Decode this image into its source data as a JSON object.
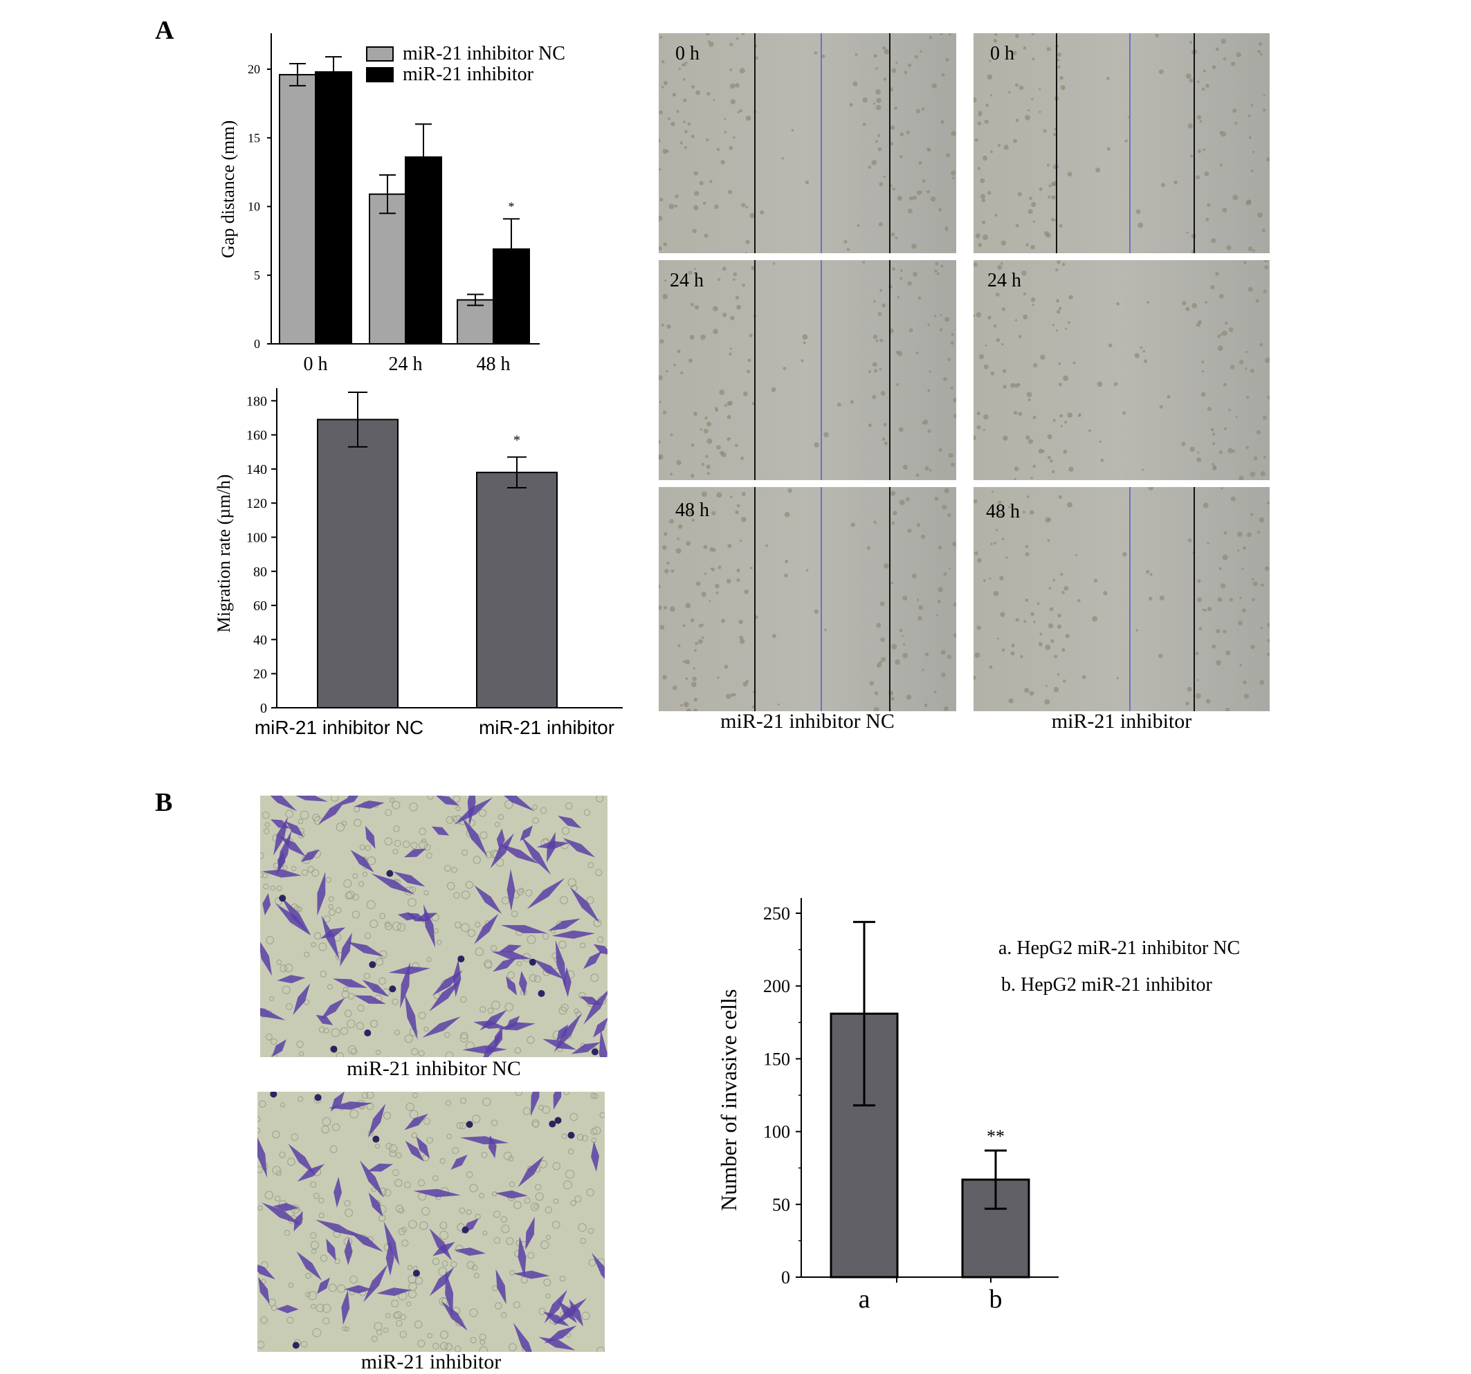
{
  "panels": {
    "a_label": "A",
    "b_label": "B"
  },
  "gap_chart": {
    "ylabel": "Gap distance (mm)",
    "legend": [
      "miR-21 inhibitor NC",
      "miR-21 inhibitor"
    ],
    "colors": [
      "#a6a6a6",
      "#000000"
    ],
    "yticks": [
      "0",
      "5",
      "10",
      "15",
      "20"
    ],
    "significance": "*"
  },
  "rate_chart": {
    "ylabel": "Migration rate (µm/h)",
    "color": "#616066",
    "yticks": [
      "0",
      "20",
      "40",
      "60",
      "80",
      "100",
      "120",
      "140",
      "160",
      "180"
    ],
    "significance": "*"
  },
  "invasion_chart": {
    "ylabel": "Number of invasive cells",
    "legend": [
      "a. HepG2 miR-21 inhibitor NC",
      "b. HepG2 miR-21 inhibitor"
    ],
    "color": "#616066",
    "yticks": [
      "0",
      "50",
      "100",
      "150",
      "200",
      "250"
    ],
    "significance": "**"
  },
  "wound_images": {
    "time_labels": [
      "0 h",
      "24 h",
      "48 h"
    ],
    "col_captions": [
      "miR-21 inhibitor NC",
      "miR-21 inhibitor"
    ]
  },
  "invasion_images": {
    "captions": [
      "miR-21 inhibitor NC",
      "miR-21 inhibitor"
    ]
  },
  "chart_data": [
    {
      "type": "bar",
      "ylabel": "Gap distance (mm)",
      "categories": [
        "0 h",
        "24 h",
        "48 h"
      ],
      "series": [
        {
          "name": "miR-21 inhibitor NC",
          "values": [
            19.6,
            10.9,
            3.2
          ],
          "errors": [
            0.8,
            1.4,
            0.4
          ]
        },
        {
          "name": "miR-21 inhibitor",
          "values": [
            19.8,
            13.6,
            6.9
          ],
          "errors": [
            1.1,
            2.4,
            2.2
          ]
        }
      ],
      "ylim": [
        0,
        22
      ],
      "annotations": [
        {
          "category": "48 h",
          "series": "miR-21 inhibitor",
          "text": "*"
        }
      ],
      "legend": "top-right"
    },
    {
      "type": "bar",
      "ylabel": "Migration rate (µm/h)",
      "categories": [
        "miR-21 inhibitor NC",
        "miR-21 inhibitor"
      ],
      "values": [
        169,
        138
      ],
      "errors": [
        16,
        9
      ],
      "ylim": [
        0,
        190
      ],
      "annotations": [
        {
          "category": "miR-21 inhibitor",
          "text": "*"
        }
      ]
    },
    {
      "type": "bar",
      "ylabel": "Number of invasive cells",
      "categories": [
        "a",
        "b"
      ],
      "values": [
        181,
        67
      ],
      "errors": [
        63,
        20
      ],
      "ylim": [
        0,
        260
      ],
      "annotations": [
        {
          "category": "b",
          "text": "**"
        }
      ],
      "legend": "top-right"
    }
  ]
}
